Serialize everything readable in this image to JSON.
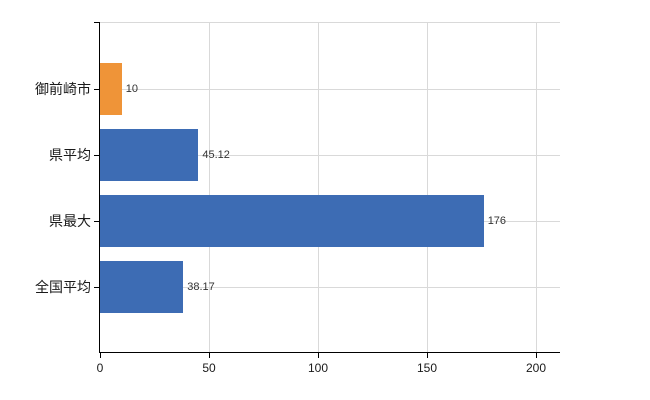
{
  "chart_data": {
    "type": "bar",
    "orientation": "horizontal",
    "title": "",
    "xlabel": "",
    "ylabel": "",
    "categories": [
      "御前崎市",
      "県平均",
      "県最大",
      "全国平均"
    ],
    "values": [
      10,
      45.12,
      176,
      38.17
    ],
    "value_labels": [
      "10",
      "45.12",
      "176",
      "38.17"
    ],
    "bar_colors": [
      "#ef9438",
      "#3d6cb4",
      "#3d6cb4",
      "#3d6cb4"
    ],
    "x_ticks": [
      0,
      50,
      100,
      150,
      200
    ],
    "x_tick_labels": [
      "0",
      "50",
      "100",
      "150",
      "200"
    ],
    "xlim": [
      0,
      211
    ],
    "grid": true,
    "legend": false,
    "colors": {
      "axis": "#000000",
      "grid": "#d9d9d9",
      "category_text": "#1a1a1a",
      "value_text": "#333333",
      "tick_text": "#1a1a1a",
      "background": "#ffffff"
    }
  }
}
